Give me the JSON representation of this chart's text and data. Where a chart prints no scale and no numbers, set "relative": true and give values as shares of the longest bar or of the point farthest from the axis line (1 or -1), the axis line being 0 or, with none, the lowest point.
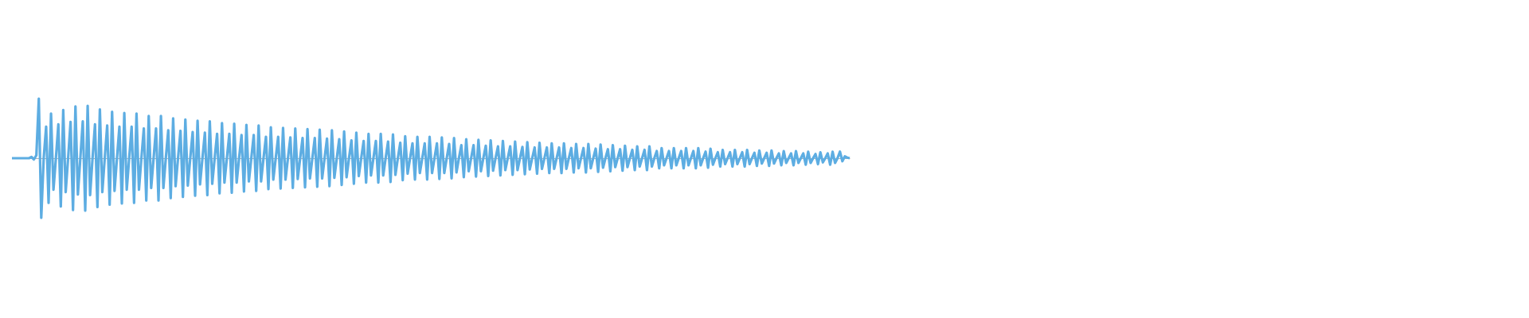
{
  "chart_data": {
    "type": "line",
    "relative": true,
    "marker": "none",
    "categories": [
      null,
      null,
      null,
      null,
      null,
      null,
      null,
      null,
      null,
      null,
      null,
      null,
      null,
      null,
      null,
      null,
      null,
      null,
      null,
      null,
      null,
      null,
      null,
      null,
      null,
      null,
      null,
      null,
      null,
      null,
      null,
      null,
      null,
      null,
      null,
      null,
      null,
      null,
      null,
      null,
      null,
      null,
      null,
      null,
      null,
      null,
      null,
      null,
      null,
      null,
      null,
      null,
      null,
      null,
      null,
      null,
      null,
      null,
      null,
      null,
      null,
      null,
      null,
      null,
      null,
      null,
      null,
      null,
      null,
      null,
      null,
      null,
      null,
      null,
      null,
      null,
      null,
      null,
      null,
      null,
      null,
      null,
      null,
      null,
      null,
      null,
      null,
      null,
      null,
      null,
      null,
      null,
      null,
      null,
      null,
      null,
      null,
      null,
      null,
      null,
      null,
      null,
      null,
      null,
      null,
      null,
      null,
      null,
      null,
      null,
      null,
      null,
      null,
      null,
      null,
      null,
      null,
      null,
      null,
      null,
      null,
      null,
      null,
      null,
      null,
      null,
      null,
      null,
      null,
      null,
      null,
      null,
      null,
      null,
      null,
      null,
      null,
      null,
      null,
      null,
      null,
      null,
      null,
      null,
      null,
      null,
      null,
      null,
      null,
      null,
      null,
      null,
      null,
      null,
      null,
      null,
      null,
      null,
      null,
      null,
      null,
      null,
      null,
      null,
      null,
      null,
      null,
      null,
      null,
      null,
      null,
      null,
      null,
      null,
      null,
      null,
      null,
      null,
      null,
      null,
      null,
      null,
      null,
      null,
      null,
      null,
      null,
      null,
      null,
      null,
      null,
      null,
      null,
      null,
      null,
      null,
      null,
      null,
      null,
      null,
      null,
      null,
      null,
      null,
      null,
      null,
      null,
      null,
      null,
      null,
      null,
      null,
      null,
      null,
      null,
      null,
      null,
      null,
      null,
      null,
      null,
      null,
      null,
      null,
      null,
      null,
      null,
      null,
      null,
      null,
      null,
      null,
      null,
      null,
      null,
      null,
      null,
      null,
      null,
      null,
      null,
      null,
      null,
      null,
      null,
      null,
      null,
      null,
      null,
      null,
      null,
      null,
      null,
      null,
      null,
      null,
      null,
      null,
      null,
      null,
      null,
      null,
      null,
      null,
      null,
      null,
      null,
      null,
      null,
      null,
      null,
      null,
      null,
      null,
      null,
      null,
      null,
      null,
      null,
      null,
      null,
      null,
      null,
      null,
      null,
      null,
      null,
      null,
      null,
      null,
      null,
      null,
      null,
      null,
      null,
      null,
      null,
      null,
      null,
      null,
      null,
      null,
      null,
      null,
      null,
      null,
      null,
      null,
      null,
      null,
      null,
      null,
      null,
      null,
      null,
      null,
      null,
      null,
      null,
      null,
      null,
      null,
      null,
      null,
      null,
      null,
      null,
      null,
      null,
      null,
      null,
      null,
      null,
      null,
      null,
      null,
      null,
      null,
      null,
      null,
      null,
      null,
      null,
      null
    ],
    "series": [
      {
        "color": "#5dade2",
        "values": [
          0,
          0,
          0,
          0,
          0,
          0,
          0,
          0,
          0.02,
          -0.02,
          0.05,
          1,
          -1,
          0,
          0.53,
          -0.75,
          0.75,
          -0.53,
          0,
          0.57,
          -0.81,
          0.81,
          -0.57,
          0,
          0.61,
          -0.87,
          0.87,
          -0.61,
          0,
          0.62,
          -0.88,
          0.88,
          -0.62,
          0,
          0.57,
          -0.82,
          0.82,
          -0.57,
          0,
          0.55,
          -0.78,
          0.78,
          -0.55,
          0,
          0.53,
          -0.76,
          0.76,
          -0.53,
          0,
          0.53,
          -0.75,
          0.75,
          -0.53,
          0,
          0.5,
          -0.71,
          0.71,
          -0.5,
          0,
          0.5,
          -0.71,
          0.71,
          -0.5,
          0,
          0.47,
          -0.67,
          0.67,
          -0.47,
          0,
          0.46,
          -0.65,
          0.65,
          -0.46,
          0,
          0.44,
          -0.63,
          0.63,
          -0.44,
          0,
          0.43,
          -0.62,
          0.62,
          -0.43,
          0,
          0.41,
          -0.59,
          0.59,
          -0.41,
          0,
          0.41,
          -0.58,
          0.58,
          -0.41,
          0,
          0.39,
          -0.56,
          0.56,
          -0.39,
          0,
          0.39,
          -0.55,
          0.55,
          -0.39,
          0,
          0.36,
          -0.52,
          0.52,
          -0.36,
          0,
          0.36,
          -0.51,
          0.51,
          -0.36,
          0,
          0.35,
          -0.5,
          0.5,
          -0.35,
          0,
          0.34,
          -0.49,
          0.49,
          -0.34,
          0,
          0.34,
          -0.48,
          0.48,
          -0.34,
          0,
          0.33,
          -0.47,
          0.47,
          -0.33,
          0,
          0.32,
          -0.45,
          0.45,
          -0.32,
          0,
          0.3,
          -0.43,
          0.43,
          -0.3,
          0,
          0.29,
          -0.41,
          0.41,
          -0.29,
          0,
          0.29,
          -0.41,
          0.41,
          -0.29,
          0,
          0.28,
          -0.4,
          0.4,
          -0.28,
          0,
          0.26,
          -0.37,
          0.37,
          -0.26,
          0,
          0.25,
          -0.36,
          0.36,
          -0.25,
          0,
          0.25,
          -0.36,
          0.36,
          -0.25,
          0,
          0.25,
          -0.35,
          0.35,
          -0.25,
          0,
          0.24,
          -0.34,
          0.34,
          -0.24,
          0,
          0.22,
          -0.32,
          0.32,
          -0.22,
          0,
          0.22,
          -0.31,
          0.31,
          -0.22,
          0,
          0.21,
          -0.3,
          0.3,
          -0.21,
          0,
          0.2,
          -0.29,
          0.29,
          -0.2,
          0,
          0.2,
          -0.28,
          0.28,
          -0.2,
          0,
          0.19,
          -0.27,
          0.27,
          -0.19,
          0,
          0.18,
          -0.26,
          0.26,
          -0.18,
          0,
          0.18,
          -0.25,
          0.25,
          -0.18,
          0,
          0.18,
          -0.25,
          0.25,
          -0.18,
          0,
          0.17,
          -0.24,
          0.24,
          -0.17,
          0,
          0.17,
          -0.24,
          0.24,
          -0.17,
          0,
          0.16,
          -0.23,
          0.23,
          -0.16,
          0,
          0.15,
          -0.22,
          0.22,
          -0.15,
          0,
          0.15,
          -0.21,
          0.21,
          -0.15,
          0,
          0.14,
          -0.2,
          0.2,
          -0.14,
          0,
          0.14,
          -0.2,
          0.2,
          -0.14,
          0,
          0.12,
          -0.17,
          0.17,
          -0.12,
          0,
          0.12,
          -0.17,
          0.17,
          -0.12,
          0,
          0.12,
          -0.17,
          0.17,
          -0.12,
          0,
          0.12,
          -0.17,
          0.17,
          -0.12,
          0,
          0.11,
          -0.16,
          0.16,
          -0.11,
          0,
          0.1,
          -0.14,
          0.14,
          -0.1,
          0,
          0.1,
          -0.14,
          0.14,
          -0.1,
          0,
          0.1,
          -0.14,
          0.14,
          -0.1,
          0,
          0.09,
          -0.13,
          0.13,
          -0.09,
          0,
          0.09,
          -0.13,
          0.13,
          -0.09,
          0,
          0.08,
          -0.12,
          0.12,
          -0.08,
          0,
          0.08,
          -0.12,
          0.12,
          -0.08,
          0,
          0.08,
          -0.11,
          0.11,
          -0.08,
          0,
          0.07,
          -0.1,
          0.1,
          -0.07,
          0,
          0.08,
          -0.11,
          0.11,
          -0.08,
          0,
          0.11,
          -0.05,
          0.03,
          0.01,
          0
        ]
      }
    ]
  }
}
